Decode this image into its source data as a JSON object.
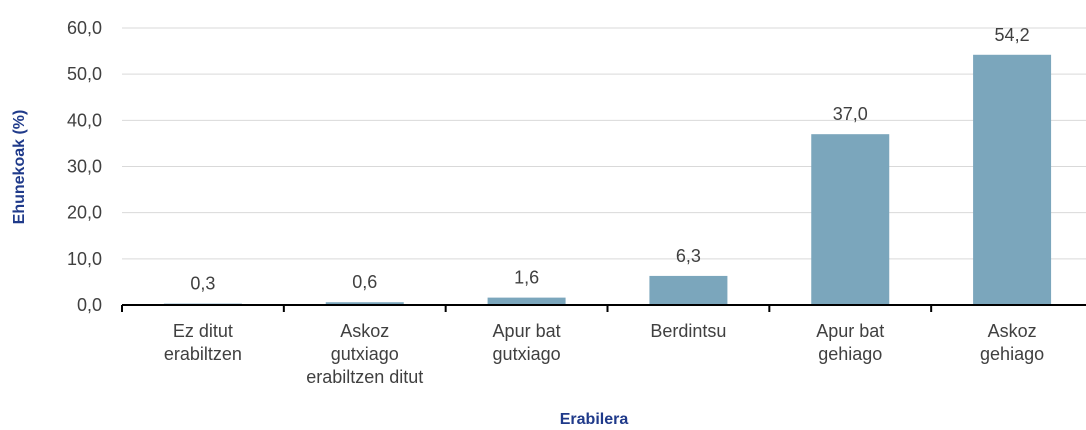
{
  "chart_data": {
    "type": "bar",
    "y_label": "Ehunekoak (%)",
    "x_label": "Erabilera",
    "categories": [
      [
        "Ez ditut",
        "erabiltzen"
      ],
      [
        "Askoz",
        "gutxiago",
        "erabiltzen ditut"
      ],
      [
        "Apur bat",
        "gutxiago"
      ],
      [
        "Berdintsu"
      ],
      [
        "Apur bat",
        "gehiago"
      ],
      [
        "Askoz",
        "gehiago"
      ]
    ],
    "values": [
      0.3,
      0.6,
      1.6,
      6.3,
      37.0,
      54.2
    ],
    "value_labels": [
      "0,3",
      "0,6",
      "1,6",
      "6,3",
      "37,0",
      "54,2"
    ],
    "color": "#7ba6bc",
    "ylim": [
      0,
      60
    ],
    "yticks": [
      {
        "value": 0,
        "label": "0,0"
      },
      {
        "value": 10,
        "label": "10,0"
      },
      {
        "value": 20,
        "label": "20,0"
      },
      {
        "value": 30,
        "label": "30,0"
      },
      {
        "value": 40,
        "label": "40,0"
      },
      {
        "value": 50,
        "label": "50,0"
      },
      {
        "value": 60,
        "label": "60,0"
      }
    ],
    "grid": true
  }
}
